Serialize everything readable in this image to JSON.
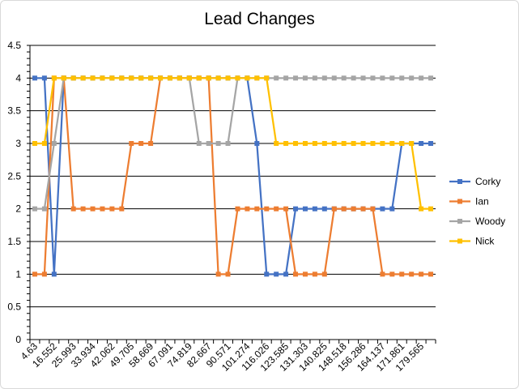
{
  "chart_data": {
    "type": "line",
    "title": "Lead Changes",
    "xlabel": "",
    "ylabel": "",
    "ylim": [
      0,
      4.5
    ],
    "y_ticks": [
      "0",
      "0.5",
      "1",
      "1.5",
      "2",
      "2.5",
      "3",
      "3.5",
      "4",
      "4.5"
    ],
    "grid": true,
    "legend_position": "right",
    "x_tick_labels": [
      "4.63",
      "16.552",
      "25.993",
      "33.934",
      "42.062",
      "49.705",
      "58.669",
      "67.091",
      "74.819",
      "82.667",
      "90.571",
      "101.274",
      "116.026",
      "123.585",
      "131.303",
      "140.825",
      "148.518",
      "156.286",
      "164.137",
      "171.861",
      "179.565"
    ],
    "num_points": 42,
    "series": [
      {
        "name": "Corky",
        "color": "#4472C4",
        "values": [
          4,
          4,
          1,
          4,
          4,
          4,
          4,
          4,
          4,
          4,
          4,
          4,
          4,
          4,
          4,
          4,
          4,
          4,
          4,
          4,
          4,
          4,
          4,
          3,
          1,
          1,
          1,
          2,
          2,
          2,
          2,
          2,
          2,
          2,
          2,
          2,
          2,
          2,
          3,
          3,
          3,
          3
        ]
      },
      {
        "name": "Ian",
        "color": "#ED7D31",
        "values": [
          1,
          1,
          4,
          4,
          2,
          2,
          2,
          2,
          2,
          2,
          3,
          3,
          3,
          4,
          4,
          4,
          4,
          4,
          4,
          1,
          1,
          2,
          2,
          2,
          2,
          2,
          2,
          1,
          1,
          1,
          1,
          2,
          2,
          2,
          2,
          2,
          1,
          1,
          1,
          1,
          1,
          1
        ]
      },
      {
        "name": "Woody",
        "color": "#A5A5A5",
        "values": [
          2,
          2,
          3,
          4,
          4,
          4,
          4,
          4,
          4,
          4,
          4,
          4,
          4,
          4,
          4,
          4,
          4,
          3,
          3,
          3,
          3,
          4,
          4,
          4,
          4,
          4,
          4,
          4,
          4,
          4,
          4,
          4,
          4,
          4,
          4,
          4,
          4,
          4,
          4,
          4,
          4,
          4
        ]
      },
      {
        "name": "Nick",
        "color": "#FFC000",
        "values": [
          3,
          3,
          4,
          4,
          4,
          4,
          4,
          4,
          4,
          4,
          4,
          4,
          4,
          4,
          4,
          4,
          4,
          4,
          4,
          4,
          4,
          4,
          4,
          4,
          4,
          3,
          3,
          3,
          3,
          3,
          3,
          3,
          3,
          3,
          3,
          3,
          3,
          3,
          3,
          3,
          2,
          2
        ]
      }
    ]
  }
}
